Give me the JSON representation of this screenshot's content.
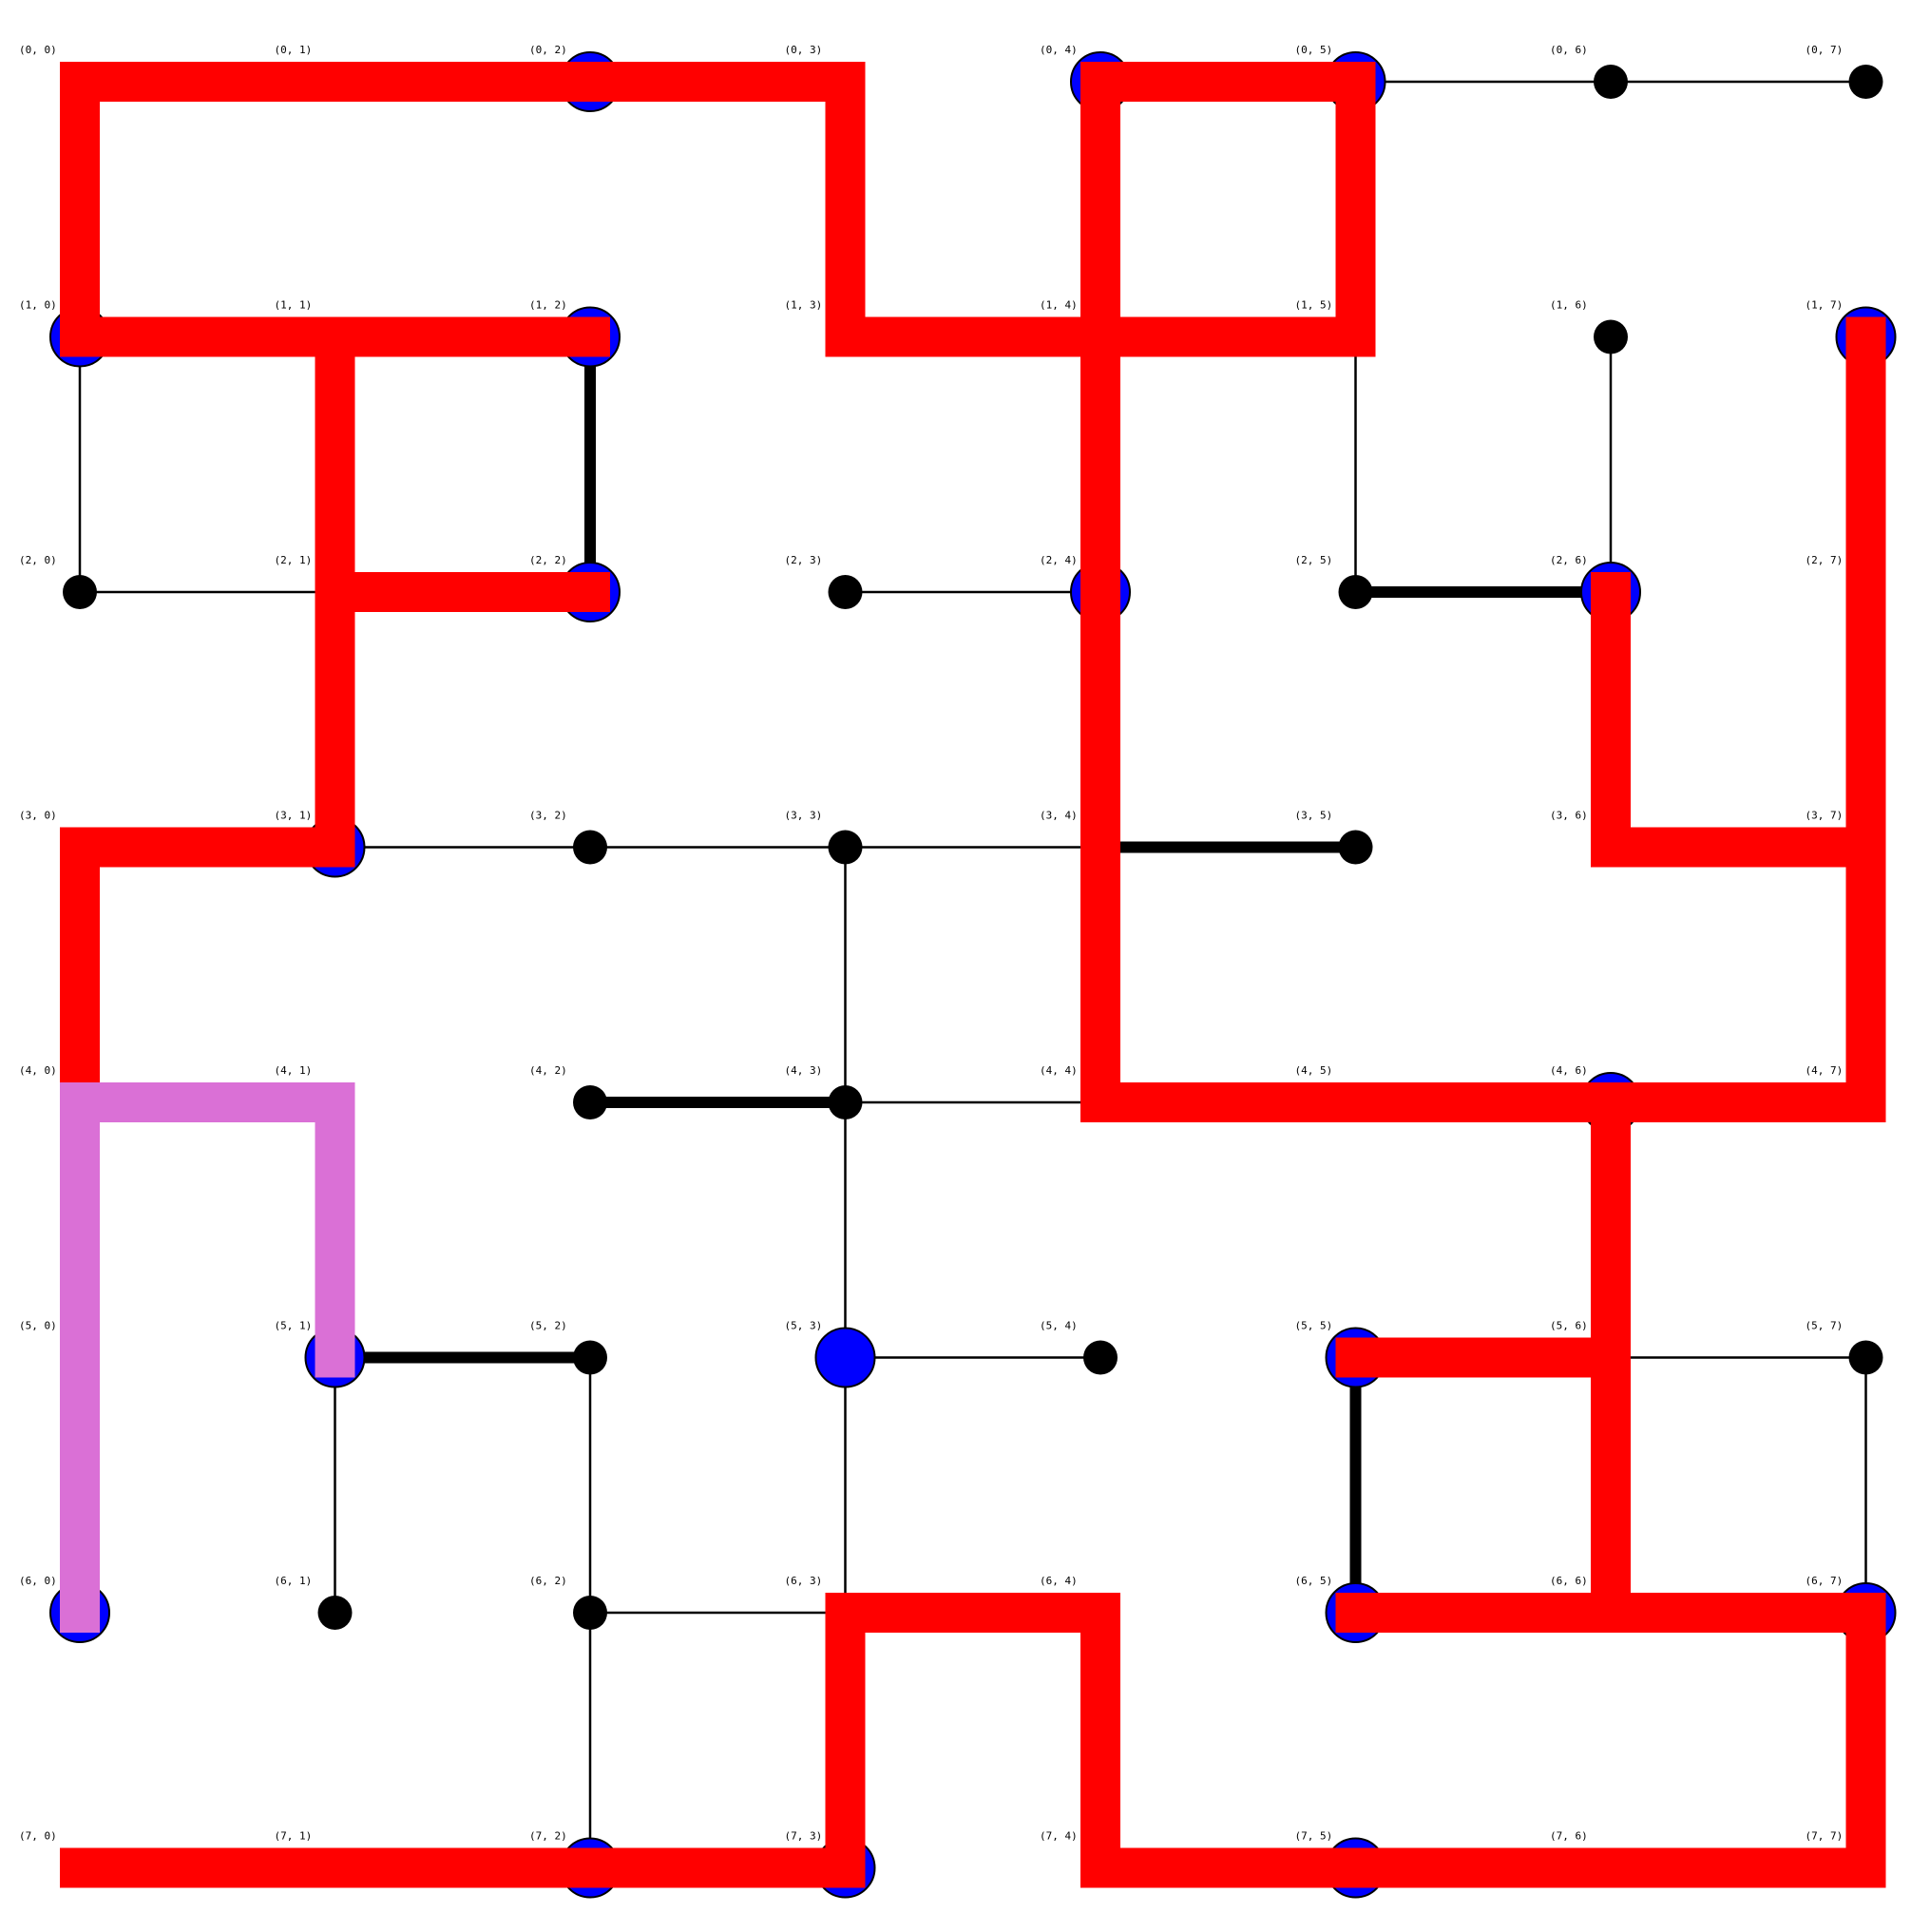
{
  "grid": {
    "rows": 8,
    "cols": 8,
    "node_labels": [
      [
        "(0, 0)",
        "(0, 1)",
        "(0, 2)",
        "(0, 3)",
        "(0, 4)",
        "(0, 5)",
        "(0, 6)",
        "(0, 7)"
      ],
      [
        "(1, 0)",
        "(1, 1)",
        "(1, 2)",
        "(1, 3)",
        "(1, 4)",
        "(1, 5)",
        "(1, 6)",
        "(1, 7)"
      ],
      [
        "(2, 0)",
        "(2, 1)",
        "(2, 2)",
        "(2, 3)",
        "(2, 4)",
        "(2, 5)",
        "(2, 6)",
        "(2, 7)"
      ],
      [
        "(3, 0)",
        "(3, 1)",
        "(3, 2)",
        "(3, 3)",
        "(3, 4)",
        "(3, 5)",
        "(3, 6)",
        "(3, 7)"
      ],
      [
        "(4, 0)",
        "(4, 1)",
        "(4, 2)",
        "(4, 3)",
        "(4, 4)",
        "(4, 5)",
        "(4, 6)",
        "(4, 7)"
      ],
      [
        "(5, 0)",
        "(5, 1)",
        "(5, 2)",
        "(5, 3)",
        "(5, 4)",
        "(5, 5)",
        "(5, 6)",
        "(5, 7)"
      ],
      [
        "(6, 0)",
        "(6, 1)",
        "(6, 2)",
        "(6, 3)",
        "(6, 4)",
        "(6, 5)",
        "(6, 6)",
        "(6, 7)"
      ],
      [
        "(7, 0)",
        "(7, 1)",
        "(7, 2)",
        "(7, 3)",
        "(7, 4)",
        "(7, 5)",
        "(7, 6)",
        "(7, 7)"
      ]
    ]
  },
  "colors": {
    "node": "#000000",
    "highlight_node": "#0000ff",
    "red_path": "#ff0000",
    "pink_path": "#da70d6",
    "edge": "#000000",
    "background": "#ffffff"
  },
  "highlight_nodes": [
    [
      0,
      2
    ],
    [
      0,
      4
    ],
    [
      0,
      5
    ],
    [
      1,
      0
    ],
    [
      1,
      2
    ],
    [
      1,
      7
    ],
    [
      2,
      2
    ],
    [
      2,
      4
    ],
    [
      2,
      6
    ],
    [
      3,
      1
    ],
    [
      4,
      6
    ],
    [
      5,
      1
    ],
    [
      5,
      3
    ],
    [
      5,
      5
    ],
    [
      6,
      0
    ],
    [
      6,
      5
    ],
    [
      6,
      7
    ],
    [
      7,
      2
    ],
    [
      7,
      3
    ],
    [
      7,
      5
    ]
  ],
  "thin_edges": [
    [
      [
        0,
        5
      ],
      [
        0,
        6
      ]
    ],
    [
      [
        0,
        6
      ],
      [
        0,
        7
      ]
    ],
    [
      [
        1,
        0
      ],
      [
        2,
        0
      ]
    ],
    [
      [
        2,
        0
      ],
      [
        2,
        1
      ]
    ],
    [
      [
        1,
        5
      ],
      [
        2,
        5
      ]
    ],
    [
      [
        1,
        6
      ],
      [
        2,
        6
      ]
    ],
    [
      [
        2,
        3
      ],
      [
        2,
        4
      ]
    ],
    [
      [
        3,
        1
      ],
      [
        3,
        2
      ]
    ],
    [
      [
        3,
        2
      ],
      [
        3,
        3
      ]
    ],
    [
      [
        3,
        3
      ],
      [
        3,
        4
      ]
    ],
    [
      [
        3,
        3
      ],
      [
        4,
        3
      ]
    ],
    [
      [
        4,
        3
      ],
      [
        5,
        3
      ]
    ],
    [
      [
        5,
        3
      ],
      [
        6,
        3
      ]
    ],
    [
      [
        4,
        3
      ],
      [
        4,
        4
      ]
    ],
    [
      [
        5,
        1
      ],
      [
        6,
        1
      ]
    ],
    [
      [
        5,
        2
      ],
      [
        6,
        2
      ]
    ],
    [
      [
        6,
        2
      ],
      [
        7,
        2
      ]
    ],
    [
      [
        6,
        2
      ],
      [
        6,
        3
      ]
    ],
    [
      [
        5,
        3
      ],
      [
        5,
        4
      ]
    ],
    [
      [
        5,
        6
      ],
      [
        5,
        7
      ]
    ],
    [
      [
        5,
        7
      ],
      [
        6,
        7
      ]
    ]
  ],
  "thick_edges": [
    [
      [
        1,
        2
      ],
      [
        2,
        2
      ]
    ],
    [
      [
        2,
        5
      ],
      [
        2,
        6
      ]
    ],
    [
      [
        3,
        4
      ],
      [
        3,
        5
      ]
    ],
    [
      [
        4,
        2
      ],
      [
        4,
        3
      ]
    ],
    [
      [
        5,
        1
      ],
      [
        5,
        2
      ]
    ],
    [
      [
        5,
        5
      ],
      [
        6,
        5
      ]
    ]
  ],
  "red_edges": [
    [
      [
        0,
        0
      ],
      [
        0,
        1
      ]
    ],
    [
      [
        0,
        1
      ],
      [
        0,
        2
      ]
    ],
    [
      [
        0,
        2
      ],
      [
        0,
        3
      ]
    ],
    [
      [
        0,
        0
      ],
      [
        1,
        0
      ]
    ],
    [
      [
        1,
        0
      ],
      [
        1,
        1
      ]
    ],
    [
      [
        1,
        1
      ],
      [
        1,
        2
      ]
    ],
    [
      [
        0,
        3
      ],
      [
        1,
        3
      ]
    ],
    [
      [
        1,
        3
      ],
      [
        1,
        4
      ]
    ],
    [
      [
        1,
        4
      ],
      [
        1,
        5
      ]
    ],
    [
      [
        0,
        4
      ],
      [
        0,
        5
      ]
    ],
    [
      [
        0,
        4
      ],
      [
        1,
        4
      ]
    ],
    [
      [
        0,
        5
      ],
      [
        1,
        5
      ]
    ],
    [
      [
        1,
        4
      ],
      [
        2,
        4
      ]
    ],
    [
      [
        2,
        4
      ],
      [
        3,
        4
      ]
    ],
    [
      [
        3,
        4
      ],
      [
        4,
        4
      ]
    ],
    [
      [
        1,
        1
      ],
      [
        2,
        1
      ]
    ],
    [
      [
        2,
        1
      ],
      [
        3,
        1
      ]
    ],
    [
      [
        2,
        1
      ],
      [
        2,
        2
      ]
    ],
    [
      [
        3,
        0
      ],
      [
        3,
        1
      ]
    ],
    [
      [
        3,
        0
      ],
      [
        4,
        0
      ]
    ],
    [
      [
        1,
        7
      ],
      [
        2,
        7
      ]
    ],
    [
      [
        2,
        7
      ],
      [
        3,
        7
      ]
    ],
    [
      [
        3,
        7
      ],
      [
        4,
        7
      ]
    ],
    [
      [
        2,
        6
      ],
      [
        3,
        6
      ]
    ],
    [
      [
        3,
        6
      ],
      [
        3,
        7
      ]
    ],
    [
      [
        4,
        4
      ],
      [
        4,
        5
      ]
    ],
    [
      [
        4,
        5
      ],
      [
        4,
        6
      ]
    ],
    [
      [
        4,
        6
      ],
      [
        4,
        7
      ]
    ],
    [
      [
        4,
        6
      ],
      [
        5,
        6
      ]
    ],
    [
      [
        5,
        6
      ],
      [
        6,
        6
      ]
    ],
    [
      [
        5,
        5
      ],
      [
        5,
        6
      ]
    ],
    [
      [
        6,
        5
      ],
      [
        6,
        6
      ]
    ],
    [
      [
        6,
        6
      ],
      [
        6,
        7
      ]
    ],
    [
      [
        6,
        7
      ],
      [
        7,
        7
      ]
    ],
    [
      [
        7,
        5
      ],
      [
        7,
        6
      ]
    ],
    [
      [
        7,
        6
      ],
      [
        7,
        7
      ]
    ],
    [
      [
        7,
        4
      ],
      [
        7,
        5
      ]
    ],
    [
      [
        6,
        4
      ],
      [
        7,
        4
      ]
    ],
    [
      [
        6,
        3
      ],
      [
        6,
        4
      ]
    ],
    [
      [
        6,
        3
      ],
      [
        7,
        3
      ]
    ],
    [
      [
        7,
        0
      ],
      [
        7,
        1
      ]
    ],
    [
      [
        7,
        1
      ],
      [
        7,
        2
      ]
    ],
    [
      [
        7,
        2
      ],
      [
        7,
        3
      ]
    ]
  ],
  "pink_edges": [
    [
      [
        4,
        0
      ],
      [
        4,
        1
      ]
    ],
    [
      [
        4,
        1
      ],
      [
        5,
        1
      ]
    ],
    [
      [
        4,
        0
      ],
      [
        5,
        0
      ]
    ],
    [
      [
        5,
        0
      ],
      [
        6,
        0
      ]
    ]
  ]
}
